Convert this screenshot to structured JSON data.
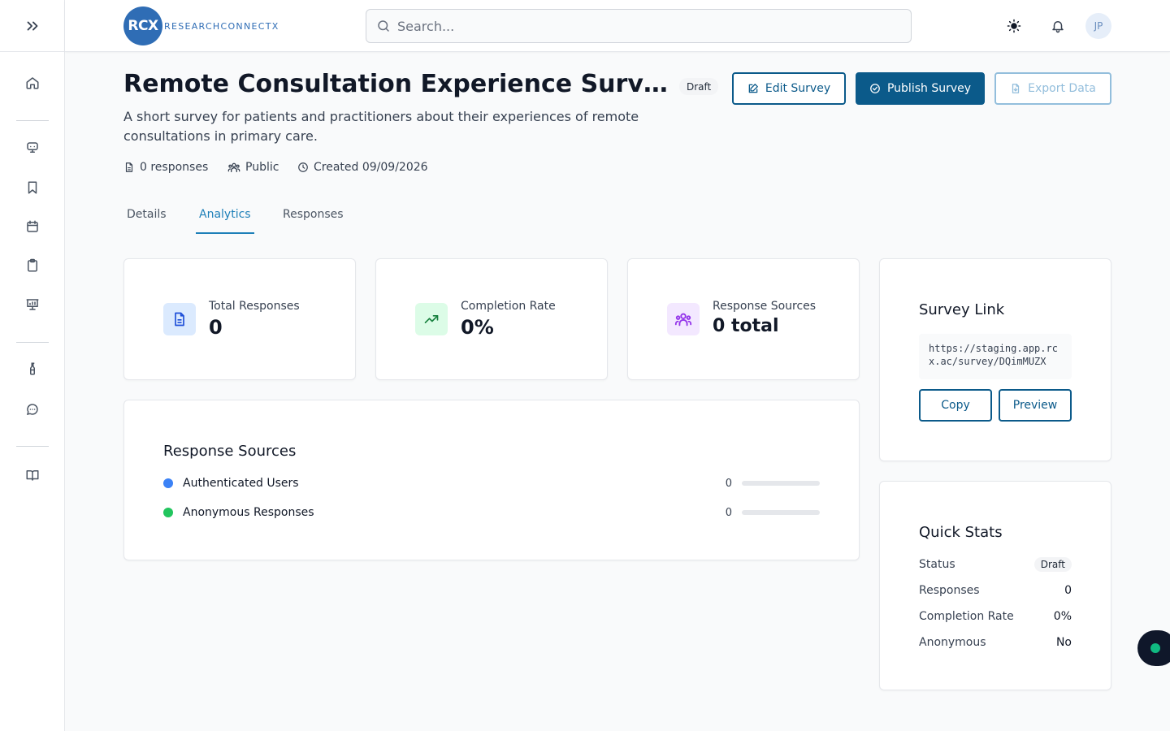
{
  "brand": {
    "logo_mark": "RCX",
    "logo_text": "RESEARCHCONNECTX",
    "color": "#2f6db5"
  },
  "header": {
    "search_placeholder": "Search...",
    "user_initials": "JP"
  },
  "sidebar": {
    "icons": [
      "chevrons-right-icon",
      "home-icon",
      "monitor-icon",
      "bookmark-icon",
      "calendar-icon",
      "clipboard-icon",
      "presentation-icon",
      "flask-icon",
      "chat-icon",
      "book-icon"
    ]
  },
  "survey": {
    "title": "Remote Consultation Experience Survey",
    "status": "Draft",
    "description": "A short survey for patients and practitioners about their experiences of remote consultations in primary care.",
    "responses_meta": "0 responses",
    "visibility": "Public",
    "created": "Created 09/09/2026"
  },
  "actions": {
    "edit": "Edit Survey",
    "publish": "Publish Survey",
    "export": "Export Data"
  },
  "tabs": [
    {
      "label": "Details",
      "active": false
    },
    {
      "label": "Analytics",
      "active": true
    },
    {
      "label": "Responses",
      "active": false
    }
  ],
  "stats": [
    {
      "label": "Total Responses",
      "value": "0",
      "icon": "document-icon",
      "color": "#1d4ed8"
    },
    {
      "label": "Completion Rate",
      "value": "0%",
      "icon": "trending-up-icon",
      "color": "#15803d"
    },
    {
      "label": "Response Sources",
      "value": "0 total",
      "icon": "users-icon",
      "color": "#9333ea"
    }
  ],
  "response_sources": {
    "title": "Response Sources",
    "items": [
      {
        "label": "Authenticated Users",
        "count": "0",
        "color": "#3b82f6",
        "fraction": 0
      },
      {
        "label": "Anonymous Responses",
        "count": "0",
        "color": "#22c55e",
        "fraction": 0
      }
    ]
  },
  "survey_link": {
    "title": "Survey Link",
    "url": "https://staging.app.rcx.ac/survey/DQimMUZX",
    "copy": "Copy",
    "preview": "Preview"
  },
  "quick_stats": {
    "title": "Quick Stats",
    "rows": [
      {
        "label": "Status",
        "value": "Draft"
      },
      {
        "label": "Responses",
        "value": "0"
      },
      {
        "label": "Completion Rate",
        "value": "0%"
      },
      {
        "label": "Anonymous",
        "value": "No"
      }
    ]
  },
  "colors": {
    "primary": "#0b5a8a",
    "accent_tab": "#1d7fb8",
    "disabled": "#93bedc"
  }
}
